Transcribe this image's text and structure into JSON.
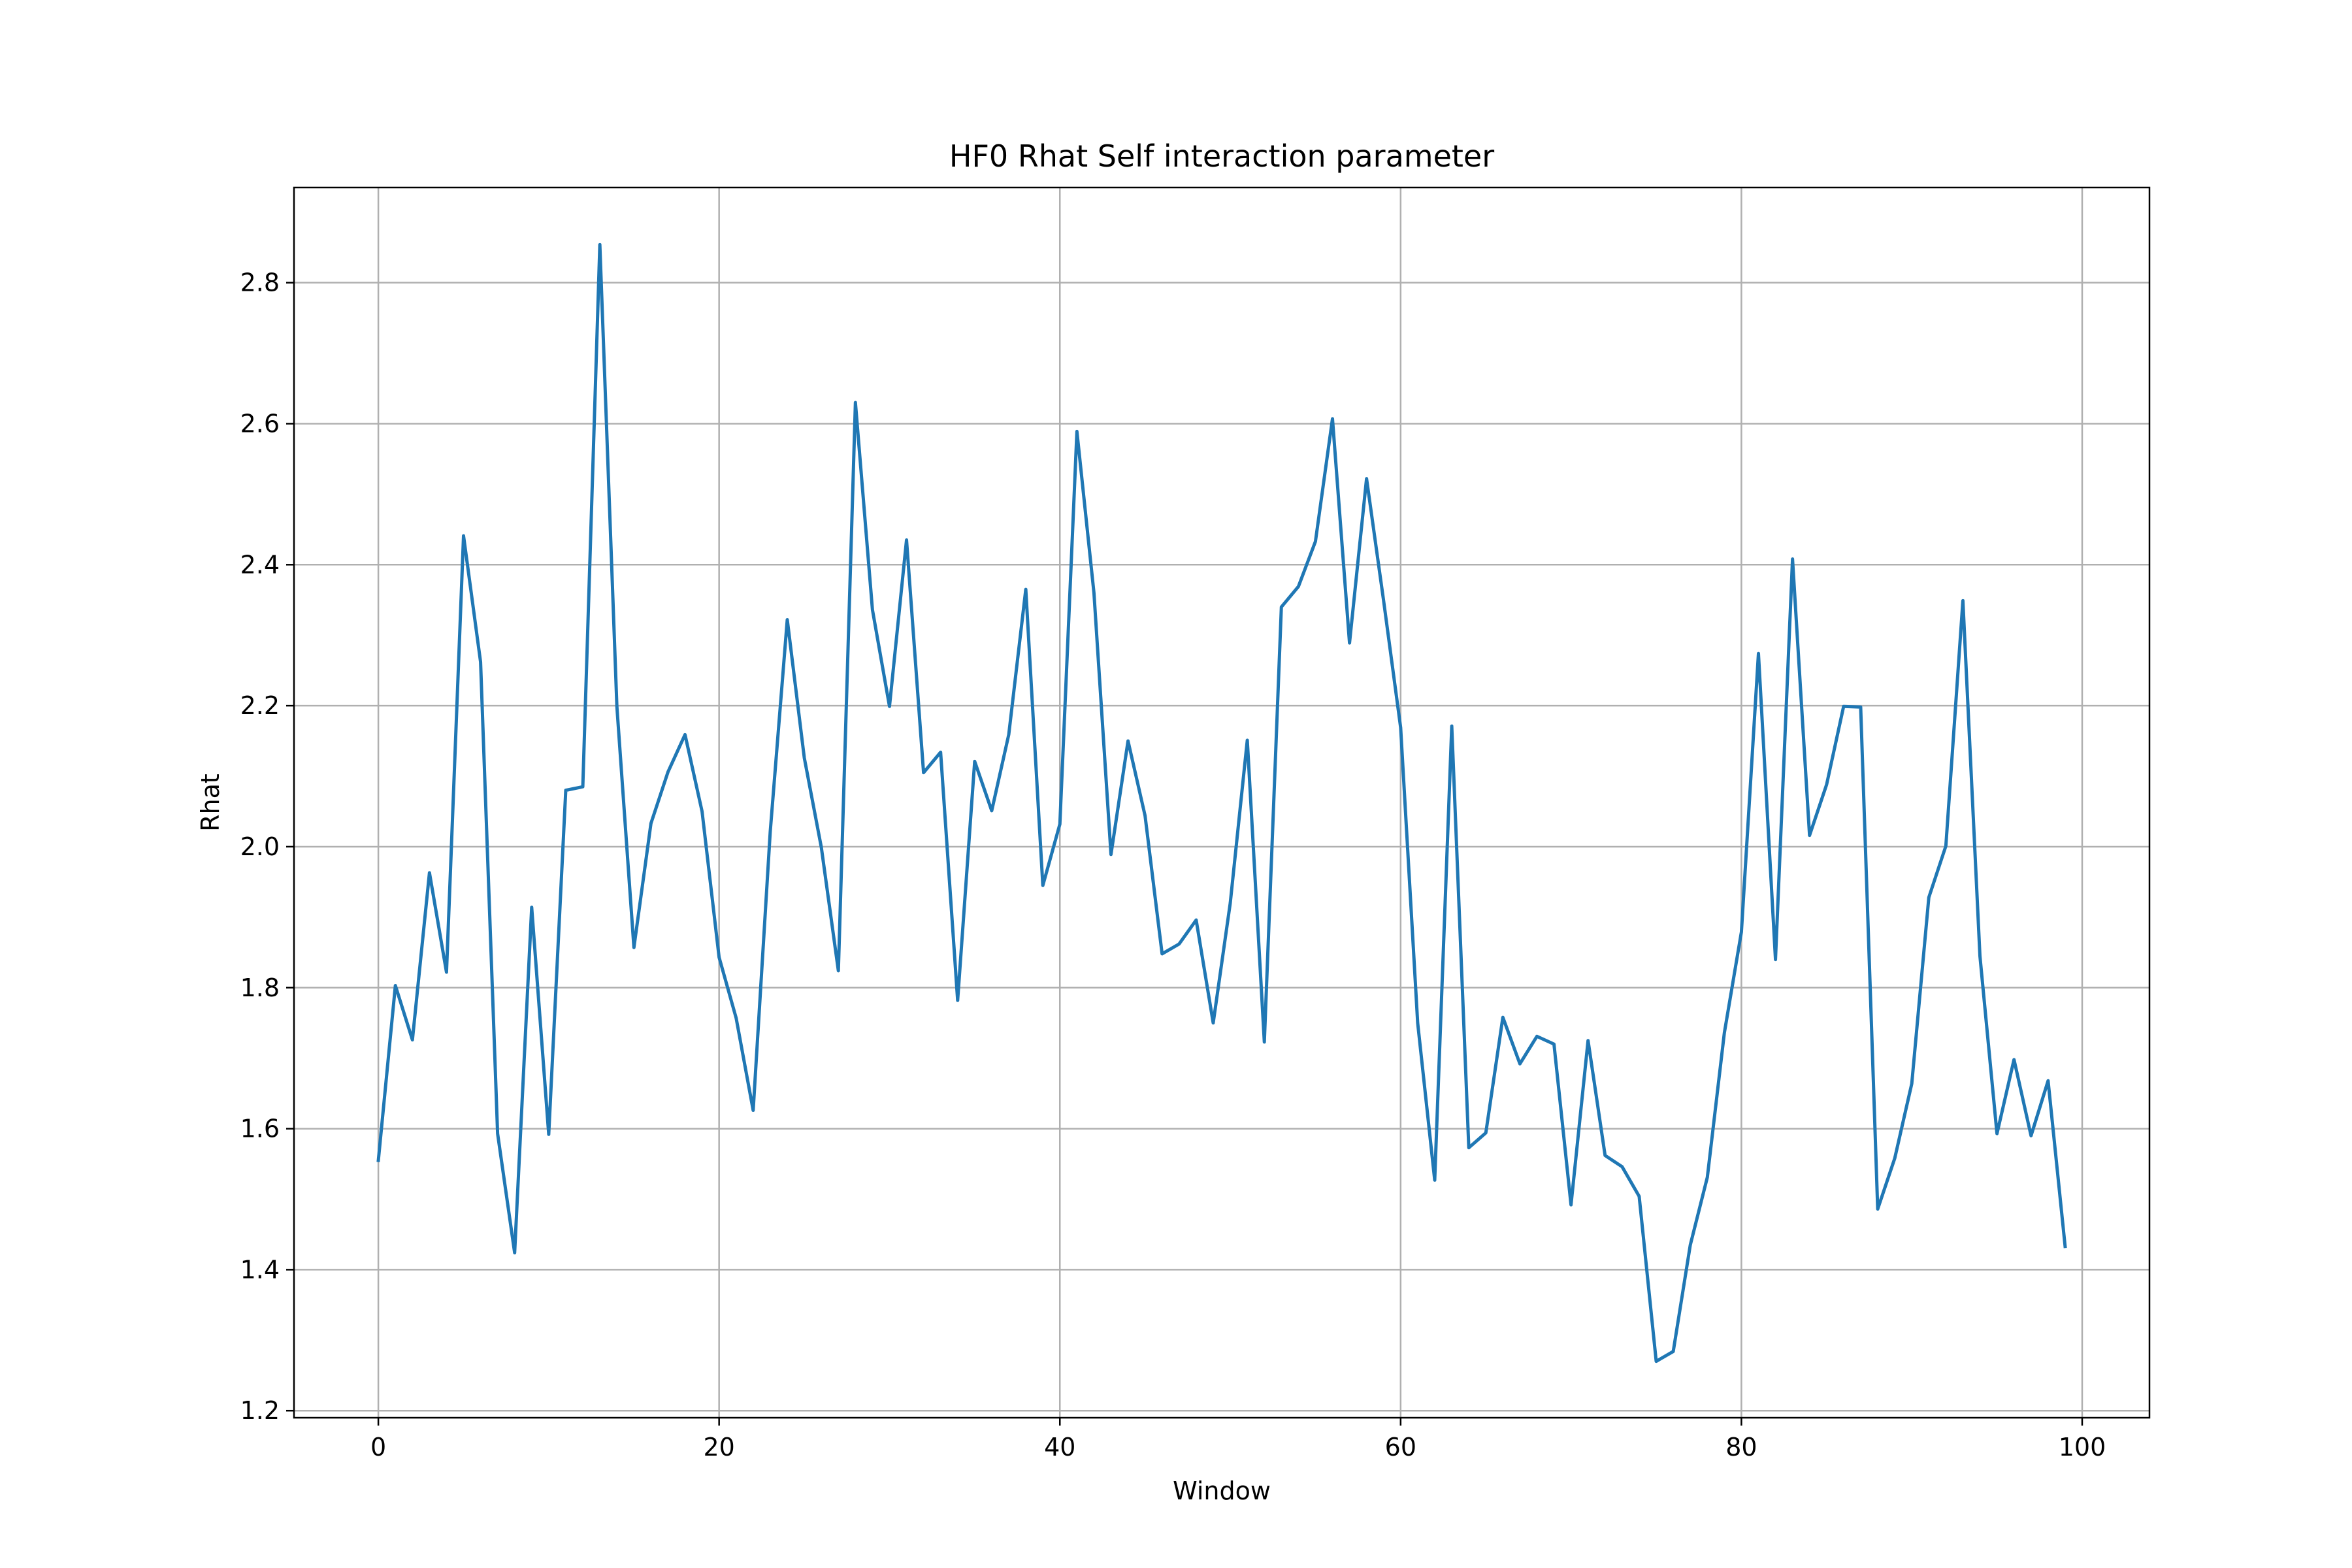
{
  "chart_data": {
    "type": "line",
    "title": "HF0 Rhat Self interaction parameter",
    "xlabel": "Window",
    "ylabel": "Rhat",
    "xlim": [
      -4.95,
      103.95
    ],
    "ylim": [
      1.19,
      2.935
    ],
    "grid": true,
    "legend": "none",
    "x_ticks": [
      0,
      20,
      40,
      60,
      80,
      100
    ],
    "x_tick_labels": [
      "0",
      "20",
      "40",
      "60",
      "80",
      "100"
    ],
    "y_ticks": [
      1.2,
      1.4,
      1.6,
      1.8,
      2.0,
      2.2,
      2.4,
      2.6,
      2.8
    ],
    "y_tick_labels": [
      "1.2",
      "1.4",
      "1.6",
      "1.8",
      "2.0",
      "2.2",
      "2.4",
      "2.6",
      "2.8"
    ],
    "colors": {
      "line": "#1f77b4",
      "grid": "#b0b0b0",
      "axes": "#000000"
    },
    "series": [
      {
        "x": [
          0,
          1,
          2,
          3,
          4,
          5,
          6,
          7,
          8,
          9,
          10,
          11,
          12,
          13,
          14,
          15,
          16,
          17,
          18,
          19,
          20,
          21,
          22,
          23,
          24,
          25,
          26,
          27,
          28,
          29,
          30,
          31,
          32,
          33,
          34,
          35,
          36,
          37,
          38,
          39,
          40,
          41,
          42,
          43,
          44,
          45,
          46,
          47,
          48,
          49,
          50,
          51,
          52,
          53,
          54,
          55,
          56,
          57,
          58,
          59,
          60,
          61,
          62,
          63,
          64,
          65,
          66,
          67,
          68,
          69,
          70,
          71,
          72,
          73,
          74,
          75,
          76,
          77,
          78,
          79,
          80,
          81,
          82,
          83,
          84,
          85,
          86,
          87,
          88,
          89,
          90,
          91,
          92,
          93,
          94,
          95,
          96,
          97,
          98,
          99
        ],
        "values": [
          1.555,
          1.803,
          1.726,
          1.963,
          1.822,
          2.441,
          2.262,
          1.593,
          1.424,
          1.914,
          1.592,
          2.08,
          2.085,
          2.854,
          2.199,
          1.857,
          2.033,
          2.106,
          2.159,
          2.05,
          1.843,
          1.757,
          1.626,
          2.021,
          2.322,
          2.126,
          1.999,
          1.824,
          2.63,
          2.336,
          2.199,
          2.435,
          2.105,
          2.134,
          1.782,
          2.121,
          2.051,
          2.159,
          2.365,
          1.945,
          2.032,
          2.589,
          2.36,
          1.989,
          2.15,
          2.044,
          1.848,
          1.862,
          1.896,
          1.75,
          1.92,
          2.151,
          1.723,
          2.34,
          2.369,
          2.433,
          2.607,
          2.289,
          2.522,
          2.349,
          2.169,
          1.75,
          1.527,
          2.171,
          1.573,
          1.594,
          1.758,
          1.692,
          1.731,
          1.72,
          1.492,
          1.725,
          1.562,
          1.546,
          1.504,
          1.27,
          1.284,
          1.435,
          1.531,
          1.736,
          1.879,
          2.274,
          1.84,
          2.408,
          2.016,
          2.088,
          2.199,
          2.198,
          1.486,
          1.558,
          1.664,
          1.928,
          2.001,
          2.349,
          1.845,
          1.593,
          1.698,
          1.59,
          1.668,
          1.433
        ]
      }
    ]
  }
}
